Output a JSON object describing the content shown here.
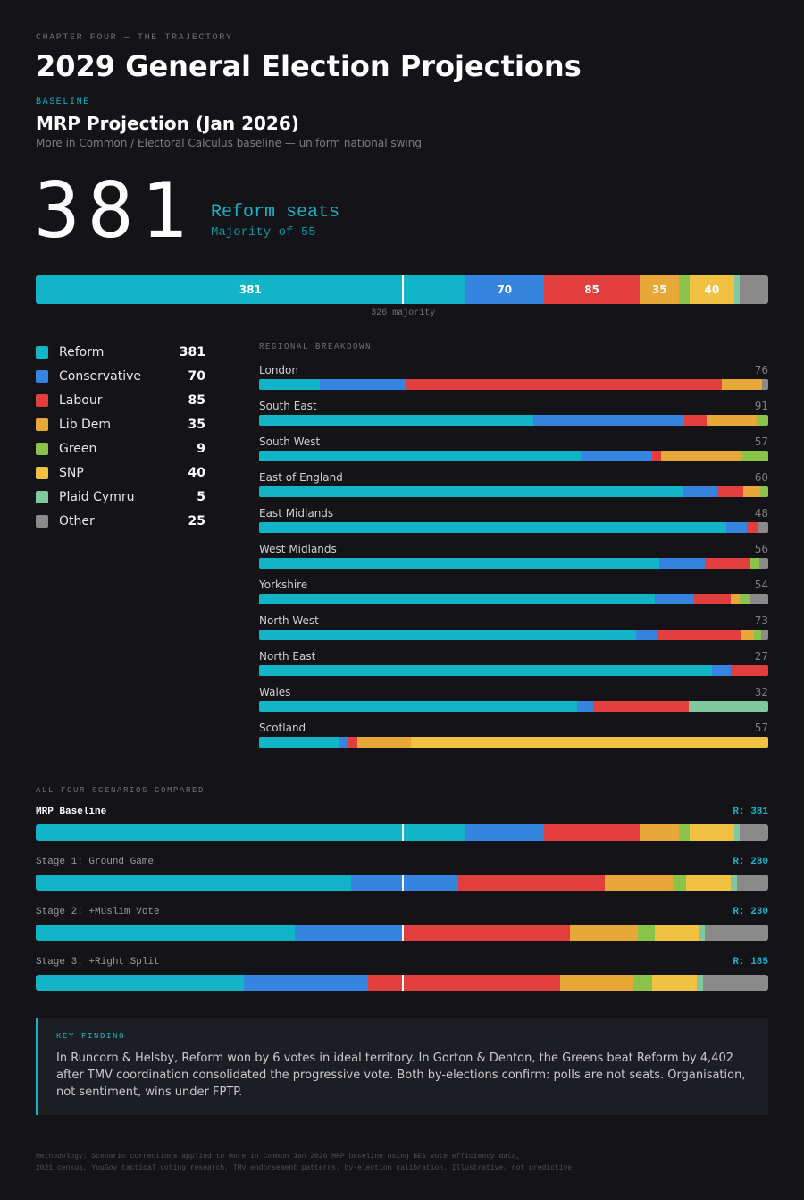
{
  "header": {
    "chapter": "CHAPTER FOUR — THE TRAJECTORY",
    "title": "2029 General Election Projections"
  },
  "baseline": {
    "section_label": "BASELINE",
    "title": "MRP Projection (Jan 2026)",
    "subtitle": "More in Common / Electoral Calculus baseline — uniform national swing",
    "big_number": "381",
    "big_caption": "Reform seats",
    "big_sub": "Majority of 55",
    "majority_label": "326 majority"
  },
  "colors": {
    "Reform": "#12b5c8",
    "Conservative": "#3584e0",
    "Labour": "#e23e3e",
    "Lib Dem": "#e8a838",
    "Green": "#8bc34a",
    "SNP": "#f1c242",
    "Plaid Cymru": "#7fc8a0",
    "Other": "#8a8a8a"
  },
  "chart_data": [
    {
      "type": "bar",
      "orientation": "horizontal-stacked",
      "title": "MRP Projection (Jan 2026)",
      "total_seats": 650,
      "majority_threshold": 326,
      "categories": [
        "Reform",
        "Conservative",
        "Labour",
        "Lib Dem",
        "Green",
        "SNP",
        "Plaid Cymru",
        "Other"
      ],
      "values": [
        381,
        70,
        85,
        35,
        9,
        40,
        5,
        25
      ]
    },
    {
      "type": "bar",
      "orientation": "horizontal-stacked",
      "title": "REGIONAL BREAKDOWN",
      "series_order": [
        "Reform",
        "Conservative",
        "Labour",
        "Lib Dem",
        "Green",
        "SNP",
        "Plaid Cymru",
        "Other"
      ],
      "regions": [
        {
          "name": "London",
          "total": 76,
          "values": [
            9,
            13,
            47,
            6,
            0,
            0,
            0,
            1
          ]
        },
        {
          "name": "South East",
          "total": 91,
          "values": [
            49,
            27,
            4,
            9,
            2,
            0,
            0,
            0
          ]
        },
        {
          "name": "South West",
          "total": 57,
          "values": [
            36,
            8,
            1,
            9,
            3,
            0,
            0,
            0
          ]
        },
        {
          "name": "East of England",
          "total": 60,
          "values": [
            50,
            4,
            3,
            2,
            1,
            0,
            0,
            0
          ]
        },
        {
          "name": "East Midlands",
          "total": 48,
          "values": [
            44,
            2,
            1,
            0,
            0,
            0,
            0,
            1
          ]
        },
        {
          "name": "West Midlands",
          "total": 56,
          "values": [
            44,
            5,
            5,
            0,
            1,
            0,
            0,
            1
          ]
        },
        {
          "name": "Yorkshire",
          "total": 54,
          "values": [
            42,
            4,
            4,
            1,
            1,
            0,
            0,
            2
          ]
        },
        {
          "name": "North West",
          "total": 73,
          "values": [
            54,
            3,
            12,
            2,
            1,
            0,
            0,
            1
          ]
        },
        {
          "name": "North East",
          "total": 27,
          "values": [
            24,
            1,
            2,
            0,
            0,
            0,
            0,
            0
          ]
        },
        {
          "name": "Wales",
          "total": 32,
          "values": [
            20,
            1,
            6,
            0,
            0,
            0,
            5,
            0
          ]
        },
        {
          "name": "Scotland",
          "total": 57,
          "values": [
            9,
            1,
            1,
            6,
            0,
            40,
            0,
            0
          ]
        }
      ]
    },
    {
      "type": "bar",
      "orientation": "horizontal-stacked",
      "title": "ALL FOUR SCENARIOS COMPARED",
      "majority_threshold": 326,
      "series_order": [
        "Reform",
        "Conservative",
        "Labour",
        "Lib Dem",
        "Green",
        "SNP",
        "Plaid Cymru",
        "Other"
      ],
      "scenarios": [
        {
          "name": "MRP Baseline",
          "label": "R: 381",
          "values": [
            381,
            70,
            85,
            35,
            9,
            40,
            5,
            25
          ]
        },
        {
          "name": "Stage 1: Ground Game",
          "label": "R: 280",
          "values": [
            280,
            95,
            130,
            60,
            12,
            40,
            5,
            28
          ]
        },
        {
          "name": "Stage 2: +Muslim Vote",
          "label": "R: 230",
          "values": [
            230,
            96,
            148,
            60,
            15,
            40,
            5,
            56
          ]
        },
        {
          "name": "Stage 3: +Right Split",
          "label": "R: 185",
          "values": [
            185,
            110,
            170,
            65,
            17,
            40,
            5,
            58
          ]
        }
      ]
    }
  ],
  "regional_label": "REGIONAL BREAKDOWN",
  "scenarios_label": "ALL FOUR SCENARIOS COMPARED",
  "finding": {
    "label": "KEY FINDING",
    "text": "In Runcorn & Helsby, Reform won by 6 votes in ideal territory. In Gorton & Denton, the Greens beat Reform by 4,402 after TMV coordination consolidated the progressive vote. Both by-elections confirm: polls are not seats. Organisation, not sentiment, wins under FPTP."
  },
  "methodology": {
    "line1": "Methodology: Scenario corrections applied to More in Common Jan 2026 MRP baseline using BES vote efficiency data,",
    "line2": "2021 census, YouGov tactical voting research, TMV endorsement patterns, by-election calibration. Illustrative, not predictive."
  }
}
